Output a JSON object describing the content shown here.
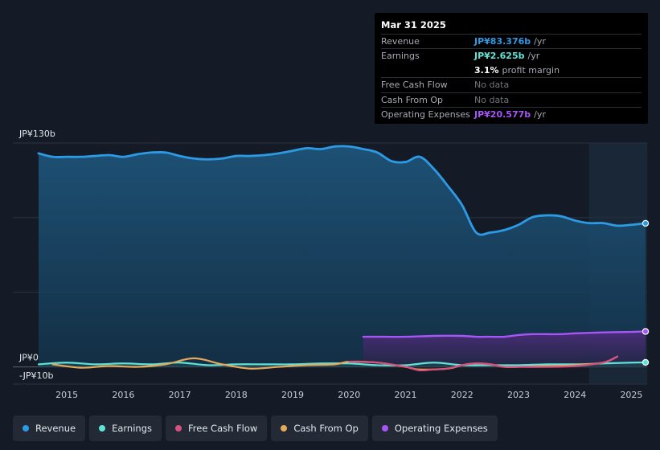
{
  "tooltip": {
    "date": "Mar 31 2025",
    "rows": [
      {
        "label": "Revenue",
        "value": "JP¥83.376b",
        "suffix": "/yr",
        "color": "#2c9be6"
      },
      {
        "label": "Earnings",
        "value": "JP¥2.625b",
        "suffix": "/yr",
        "color": "#5fe3d7"
      },
      {
        "label": "",
        "value": "3.1%",
        "suffix": "profit margin",
        "color": "#ffffff"
      },
      {
        "label": "Free Cash Flow",
        "value": "No data",
        "suffix": "",
        "color": "#6f747c"
      },
      {
        "label": "Cash From Op",
        "value": "No data",
        "suffix": "",
        "color": "#6f747c"
      },
      {
        "label": "Operating Expenses",
        "value": "JP¥20.577b",
        "suffix": "/yr",
        "color": "#a855f7"
      }
    ]
  },
  "legend": [
    {
      "label": "Revenue",
      "color": "#2c9be6"
    },
    {
      "label": "Earnings",
      "color": "#5fe3d7"
    },
    {
      "label": "Free Cash Flow",
      "color": "#d9507e"
    },
    {
      "label": "Cash From Op",
      "color": "#e8a85a"
    },
    {
      "label": "Operating Expenses",
      "color": "#a855f7"
    }
  ],
  "chart_data": {
    "type": "area",
    "y_top_label": "JP¥130b",
    "y_zero_label": "JP¥0",
    "y_bottom_label": "-JP¥10b",
    "ylim": [
      -10,
      130
    ],
    "xlim": [
      2014.5,
      2025.25
    ],
    "x_ticks": [
      "2015",
      "2016",
      "2017",
      "2018",
      "2019",
      "2020",
      "2021",
      "2022",
      "2023",
      "2024",
      "2025"
    ],
    "forecast_start": 2024.25,
    "series": [
      {
        "name": "Revenue",
        "color": "#2c9be6",
        "points": [
          [
            2014.5,
            124
          ],
          [
            2014.75,
            122
          ],
          [
            2015,
            122
          ],
          [
            2015.25,
            122
          ],
          [
            2015.5,
            122.5
          ],
          [
            2015.75,
            123
          ],
          [
            2016,
            122
          ],
          [
            2016.25,
            123.5
          ],
          [
            2016.5,
            124.5
          ],
          [
            2016.75,
            124.5
          ],
          [
            2017,
            122.5
          ],
          [
            2017.25,
            121
          ],
          [
            2017.5,
            120.5
          ],
          [
            2017.75,
            121
          ],
          [
            2018,
            122.5
          ],
          [
            2018.25,
            122.5
          ],
          [
            2018.5,
            123
          ],
          [
            2018.75,
            124
          ],
          [
            2019,
            125.5
          ],
          [
            2019.25,
            127
          ],
          [
            2019.5,
            126.5
          ],
          [
            2019.75,
            128
          ],
          [
            2020,
            128
          ],
          [
            2020.25,
            126.5
          ],
          [
            2020.5,
            124.5
          ],
          [
            2020.75,
            119.5
          ],
          [
            2021,
            119
          ],
          [
            2021.25,
            122
          ],
          [
            2021.5,
            115
          ],
          [
            2021.75,
            105
          ],
          [
            2022,
            94
          ],
          [
            2022.25,
            78
          ],
          [
            2022.5,
            78
          ],
          [
            2022.75,
            79.5
          ],
          [
            2023,
            82.5
          ],
          [
            2023.25,
            87
          ],
          [
            2023.5,
            88
          ],
          [
            2023.75,
            87.5
          ],
          [
            2024,
            85
          ],
          [
            2024.25,
            83.5
          ],
          [
            2024.5,
            83.5
          ],
          [
            2024.75,
            82
          ],
          [
            2025,
            82.5
          ],
          [
            2025.25,
            83.376
          ]
        ]
      },
      {
        "name": "Earnings",
        "color": "#5fe3d7",
        "points": [
          [
            2014.5,
            1.5
          ],
          [
            2015,
            2.5
          ],
          [
            2015.5,
            1.5
          ],
          [
            2016,
            2
          ],
          [
            2016.5,
            1.5
          ],
          [
            2017,
            2.5
          ],
          [
            2017.5,
            1
          ],
          [
            2018,
            1.5
          ],
          [
            2018.5,
            1.5
          ],
          [
            2019,
            1.5
          ],
          [
            2019.5,
            2
          ],
          [
            2020,
            2
          ],
          [
            2020.5,
            1
          ],
          [
            2021,
            1
          ],
          [
            2021.5,
            2.5
          ],
          [
            2022,
            1
          ],
          [
            2022.5,
            1
          ],
          [
            2023,
            1
          ],
          [
            2023.5,
            1.5
          ],
          [
            2024,
            1.5
          ],
          [
            2024.5,
            2
          ],
          [
            2025,
            2.5
          ],
          [
            2025.25,
            2.625
          ]
        ]
      },
      {
        "name": "Free Cash Flow",
        "color": "#d9507e",
        "points": [
          [
            2020,
            3
          ],
          [
            2020.5,
            2.5
          ],
          [
            2021,
            0
          ],
          [
            2021.25,
            -2
          ],
          [
            2021.5,
            -1.5
          ],
          [
            2021.75,
            -1
          ],
          [
            2022,
            1
          ],
          [
            2022.25,
            2
          ],
          [
            2022.5,
            1.5
          ],
          [
            2022.75,
            0
          ],
          [
            2023,
            0
          ],
          [
            2023.5,
            0
          ],
          [
            2024,
            0.5
          ],
          [
            2024.5,
            2.5
          ],
          [
            2024.75,
            6
          ]
        ]
      },
      {
        "name": "Cash From Op",
        "color": "#e8a85a",
        "points": [
          [
            2014.75,
            1.5
          ],
          [
            2015.25,
            -0.5
          ],
          [
            2015.75,
            0.5
          ],
          [
            2016.25,
            0
          ],
          [
            2016.75,
            1.5
          ],
          [
            2017.25,
            5
          ],
          [
            2017.75,
            1.5
          ],
          [
            2018.25,
            -1
          ],
          [
            2018.75,
            0
          ],
          [
            2019.25,
            1
          ],
          [
            2019.75,
            1.5
          ],
          [
            2020,
            3
          ],
          [
            2020.5,
            2.5
          ],
          [
            2021,
            0
          ],
          [
            2021.25,
            -1.5
          ],
          [
            2021.75,
            -1
          ],
          [
            2022,
            1
          ],
          [
            2022.25,
            2
          ],
          [
            2022.5,
            1.5
          ],
          [
            2022.75,
            0
          ],
          [
            2023,
            0
          ],
          [
            2023.5,
            0.5
          ],
          [
            2024,
            1
          ],
          [
            2024.5,
            2.5
          ],
          [
            2024.75,
            6
          ]
        ]
      },
      {
        "name": "Operating Expenses",
        "color": "#a855f7",
        "points": [
          [
            2020.25,
            17.5
          ],
          [
            2020.5,
            17.5
          ],
          [
            2021,
            17.5
          ],
          [
            2021.5,
            18
          ],
          [
            2022,
            18
          ],
          [
            2022.25,
            17.5
          ],
          [
            2022.5,
            17.5
          ],
          [
            2022.75,
            17.5
          ],
          [
            2023,
            18.5
          ],
          [
            2023.25,
            19
          ],
          [
            2023.5,
            19
          ],
          [
            2023.75,
            19
          ],
          [
            2024,
            19.5
          ],
          [
            2024.5,
            20
          ],
          [
            2025,
            20.3
          ],
          [
            2025.25,
            20.577
          ]
        ]
      }
    ]
  }
}
